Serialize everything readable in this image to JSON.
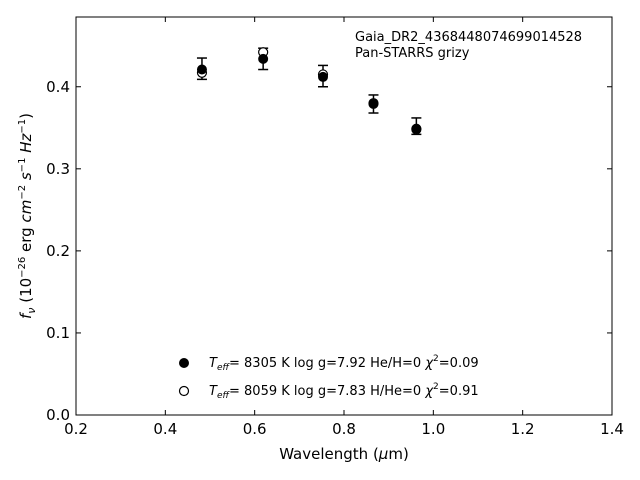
{
  "chart_data": {
    "type": "scatter",
    "title": "",
    "xlabel": "Wavelength (μm)",
    "ylabel": "f_ν (10⁻²⁶ erg cm⁻² s⁻¹ Hz⁻¹)",
    "xlim": [
      0.2,
      1.4
    ],
    "ylim": [
      0.0,
      0.485
    ],
    "xticks": [
      0.2,
      0.4,
      0.6,
      0.8,
      1.0,
      1.2,
      1.4
    ],
    "xtick_labels": [
      "0.2",
      "0.4",
      "0.6",
      "0.8",
      "1.0",
      "1.2",
      "1.4"
    ],
    "yticks": [
      0.0,
      0.1,
      0.2,
      0.3,
      0.4
    ],
    "ytick_labels": [
      "0.0",
      "0.1",
      "0.2",
      "0.3",
      "0.4"
    ],
    "grid": false,
    "annotation": {
      "line1": "Gaia_DR2_4368448074699014528",
      "line2": "Pan-STARRS grizy"
    },
    "observed": {
      "x": [
        0.482,
        0.619,
        0.753,
        0.866,
        0.962
      ],
      "y": [
        0.422,
        0.434,
        0.413,
        0.379,
        0.352
      ],
      "yerr": [
        0.013,
        0.013,
        0.013,
        0.011,
        0.01
      ],
      "color": "#000000"
    },
    "series": [
      {
        "marker": "filled",
        "x": [
          0.482,
          0.619,
          0.753,
          0.866,
          0.962
        ],
        "y": [
          0.421,
          0.434,
          0.412,
          0.379,
          0.349
        ],
        "legend": {
          "teff": "8305 K",
          "logg": "log g=7.92",
          "comp": "He/H=0",
          "chi2": "=0.09"
        }
      },
      {
        "marker": "open",
        "x": [
          0.482,
          0.619,
          0.753,
          0.866,
          0.962
        ],
        "y": [
          0.417,
          0.442,
          0.415,
          0.38,
          0.348
        ],
        "legend": {
          "teff": "8059 K",
          "logg": "log g=7.83",
          "comp": "H/He=0",
          "chi2": "=0.91"
        }
      }
    ]
  }
}
